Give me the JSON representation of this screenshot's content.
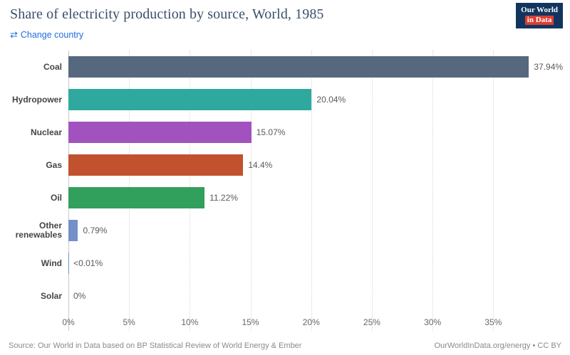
{
  "header": {
    "title": "Share of electricity production by source, World, 1985",
    "change_country_label": "Change country",
    "logo": {
      "line1": "Our World",
      "line2": "in Data"
    }
  },
  "icons": {
    "change_country": "⇄"
  },
  "colors": {
    "link_blue": "#1d6ee0",
    "logo_navy": "#12355f",
    "logo_red": "#dc3e32"
  },
  "chart_data": {
    "type": "bar",
    "orientation": "horizontal",
    "title": "Share of electricity production by source, World, 1985",
    "categories": [
      "Coal",
      "Hydropower",
      "Nuclear",
      "Gas",
      "Oil",
      "Other renewables",
      "Wind",
      "Solar"
    ],
    "values": [
      37.94,
      20.04,
      15.07,
      14.4,
      11.22,
      0.79,
      0.005,
      0
    ],
    "value_labels": [
      "37.94%",
      "20.04%",
      "15.07%",
      "14.4%",
      "11.22%",
      "0.79%",
      "<0.01%",
      "0%"
    ],
    "bar_colors": [
      "#56687d",
      "#2fa9a0",
      "#a252be",
      "#c1512f",
      "#32a05d",
      "#7390c9",
      "#7390c9",
      "#7390c9"
    ],
    "x_ticks": [
      0,
      5,
      10,
      15,
      20,
      25,
      30,
      35
    ],
    "x_tick_labels": [
      "0%",
      "5%",
      "10%",
      "15%",
      "20%",
      "25%",
      "30%",
      "35%"
    ],
    "xlim": [
      0,
      40.5
    ],
    "xlabel": "",
    "ylabel": "",
    "grid": "dotted-vertical",
    "legend": "none"
  },
  "footer": {
    "source": "Source: Our World in Data based on BP Statistical Review of World Energy & Ember",
    "credit": "OurWorldInData.org/energy • CC BY"
  }
}
